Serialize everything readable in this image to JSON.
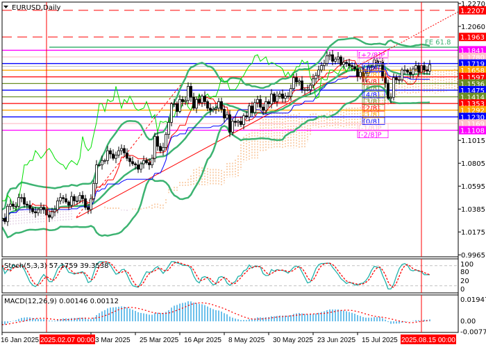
{
  "window": {
    "symbol_title": "EURUSD,Daily",
    "menu_icon": "triangle-down-icon"
  },
  "price_axis": {
    "max": 1.227,
    "min": 0.9965,
    "ticks": [
      "1.2270",
      "1.2060",
      "1.1015",
      "1.0805",
      "1.0595",
      "1.0385",
      "1.0175",
      "0.9965"
    ]
  },
  "dashed_levels": [
    {
      "price": 1.2207,
      "label": "1.2207",
      "color": "#ff0000"
    },
    {
      "price": 1.1963,
      "label": "1.1963",
      "color": "#ff0000"
    }
  ],
  "murrey_levels": [
    {
      "price": 1.1841,
      "label": "1.1841",
      "tag": "[+2/8]P",
      "color": "#ff00ff"
    },
    {
      "price": 1.178,
      "label": "1.1780",
      "tag": "[+1/8]P",
      "color": "#ffc0cb"
    },
    {
      "price": 1.1719,
      "label": "1.1719",
      "tag": "[8/8]",
      "color": "#0000ff"
    },
    {
      "price": 1.1658,
      "label": "1.1658",
      "tag": "[7/8]",
      "color": "#ffa500"
    },
    {
      "price": 1.1597,
      "label": "1.1597",
      "tag": "[6/8]",
      "color": "#ff0000"
    },
    {
      "price": 1.1536,
      "label": "1.1536",
      "tag": "[5/8]",
      "color": "#6b8e23"
    },
    {
      "price": 1.1475,
      "label": "1.1475",
      "tag": "[4/8]",
      "color": "#0000ff"
    },
    {
      "price": 1.1414,
      "label": "1.1414",
      "tag": "[3/8]",
      "color": "#6b8e23"
    },
    {
      "price": 1.1353,
      "label": "1.1353",
      "tag": "[2/8]",
      "color": "#ff0000"
    },
    {
      "price": 1.1292,
      "label": "1.1292",
      "tag": "[1/8]",
      "color": "#ffa500"
    },
    {
      "price": 1.123,
      "label": "1.1230",
      "tag": "[0/8]",
      "color": "#0000ff"
    },
    {
      "price": 1.1169,
      "label": "1.1169",
      "tag": "[-1/8]P",
      "color": "#ffc0cb"
    },
    {
      "price": 1.1108,
      "label": "1.1108",
      "tag": "[-2/8]P",
      "color": "#ff00ff"
    }
  ],
  "fibo_expansion": {
    "label": "FE 61.8",
    "color": "#3cb371"
  },
  "bid_line_price": 1.1694,
  "chart_data": {
    "type": "candlestick",
    "symbol": "EURUSD",
    "timeframe": "Daily",
    "first_date": "2025-01-16",
    "closes": [
      1.03,
      1.027,
      1.041,
      1.043,
      1.041,
      1.041,
      1.049,
      1.049,
      1.043,
      1.042,
      1.039,
      1.036,
      1.035,
      1.038,
      1.04,
      1.038,
      1.033,
      1.031,
      1.036,
      1.038,
      1.046,
      1.049,
      1.048,
      1.045,
      1.042,
      1.05,
      1.046,
      1.046,
      1.051,
      1.048,
      1.04,
      1.038,
      1.048,
      1.062,
      1.079,
      1.079,
      1.083,
      1.083,
      1.092,
      1.089,
      1.085,
      1.088,
      1.092,
      1.094,
      1.09,
      1.085,
      1.082,
      1.08,
      1.079,
      1.075,
      1.08,
      1.083,
      1.081,
      1.079,
      1.085,
      1.105,
      1.096,
      1.092,
      1.095,
      1.107,
      1.118,
      1.135,
      1.135,
      1.128,
      1.139,
      1.137,
      1.138,
      1.151,
      1.141,
      1.131,
      1.139,
      1.136,
      1.142,
      1.137,
      1.131,
      1.129,
      1.13,
      1.131,
      1.137,
      1.13,
      1.122,
      1.125,
      1.109,
      1.119,
      1.118,
      1.119,
      1.116,
      1.124,
      1.123,
      1.133,
      1.127,
      1.136,
      1.139,
      1.132,
      1.129,
      1.137,
      1.135,
      1.144,
      1.137,
      1.142,
      1.144,
      1.14,
      1.142,
      1.142,
      1.149,
      1.159,
      1.155,
      1.156,
      1.148,
      1.148,
      1.148,
      1.152,
      1.158,
      1.161,
      1.166,
      1.17,
      1.172,
      1.179,
      1.18,
      1.174,
      1.176,
      1.178,
      1.171,
      1.173,
      1.172,
      1.17,
      1.169,
      1.167,
      1.16,
      1.164,
      1.159,
      1.163,
      1.169,
      1.169,
      1.175,
      1.172,
      1.174,
      1.159,
      1.154,
      1.14,
      1.141,
      1.159,
      1.157,
      1.157,
      1.166,
      1.166,
      1.164,
      1.162,
      1.167,
      1.17,
      1.164,
      1.17,
      1.166,
      1.165,
      1.171
    ],
    "x_tick_labels": [
      {
        "bar": 0,
        "label": "16 Jan 2025"
      },
      {
        "bar": 32,
        "label": "3 Mar 2025"
      },
      {
        "bar": 48,
        "label": "25 Mar 2025"
      },
      {
        "bar": 64,
        "label": "16 Apr 2025"
      },
      {
        "bar": 80,
        "label": "8 May 2025"
      },
      {
        "bar": 96,
        "label": "30 May 2025"
      },
      {
        "bar": 112,
        "label": "23 Jun 2025"
      },
      {
        "bar": 128,
        "label": "15 Jul 2025"
      }
    ],
    "markers": [
      {
        "bar": 16,
        "label": "2025.02.07 00:00"
      },
      {
        "bar": 151,
        "label": "2025.08.15 00:00"
      }
    ],
    "overlays": [
      "Bollinger Bands",
      "Ichimoku",
      "Murrey Math",
      "Fibo expansion",
      "trend line"
    ]
  },
  "stochastic": {
    "label": "Stoch(5,3,3) 57.1759 39.3538",
    "ticks": [
      "100",
      "80",
      "20",
      "0"
    ],
    "main_color": "#20b2aa",
    "signal_color": "#ff0000"
  },
  "macd": {
    "label": "MACD(12,26,9) 0.00146 0.00112",
    "ticks": [
      "0.01947",
      "0.00",
      "-0.00771"
    ],
    "max": 0.01947,
    "min": -0.00771,
    "hist_color": "#1e9fe0",
    "signal_color": "#ff0000"
  }
}
